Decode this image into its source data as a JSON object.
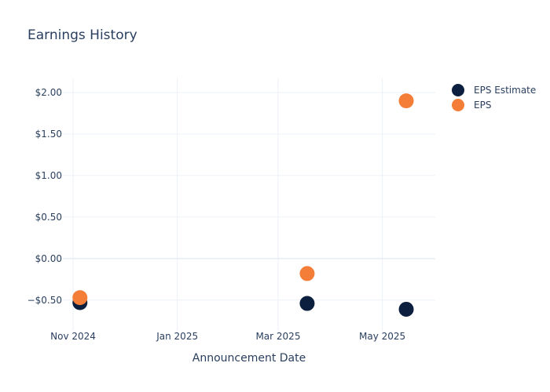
{
  "chart_data": {
    "type": "scatter",
    "title": "Earnings History",
    "xlabel": "Announcement Date",
    "ylabel": "",
    "x_ticks": [
      {
        "date": "2024-11-01",
        "label": "Nov 2024"
      },
      {
        "date": "2025-01-01",
        "label": "Jan 2025"
      },
      {
        "date": "2025-03-01",
        "label": "Mar 2025"
      },
      {
        "date": "2025-05-01",
        "label": "May 2025"
      }
    ],
    "x_range": [
      "2024-10-26",
      "2025-06-01"
    ],
    "y_ticks": [
      {
        "value": -0.5,
        "label": "−$0.50"
      },
      {
        "value": 0,
        "label": "$0.00"
      },
      {
        "value": 0.5,
        "label": "$0.50"
      },
      {
        "value": 1,
        "label": "$1.00"
      },
      {
        "value": 1.5,
        "label": "$1.50"
      },
      {
        "value": 2,
        "label": "$2.00"
      }
    ],
    "ylim": [
      -0.87,
      2.17
    ],
    "grid": true,
    "legend_position": "top-right",
    "series": [
      {
        "name": "EPS Estimate",
        "color": "#0c1f3f",
        "points": [
          {
            "x": "2024-11-05",
            "y": -0.53
          },
          {
            "x": "2025-03-18",
            "y": -0.54
          },
          {
            "x": "2025-05-15",
            "y": -0.61
          }
        ]
      },
      {
        "name": "EPS",
        "color": "#f47d37",
        "points": [
          {
            "x": "2024-11-05",
            "y": -0.47
          },
          {
            "x": "2025-03-18",
            "y": -0.18
          },
          {
            "x": "2025-05-15",
            "y": 1.9
          }
        ]
      }
    ]
  }
}
